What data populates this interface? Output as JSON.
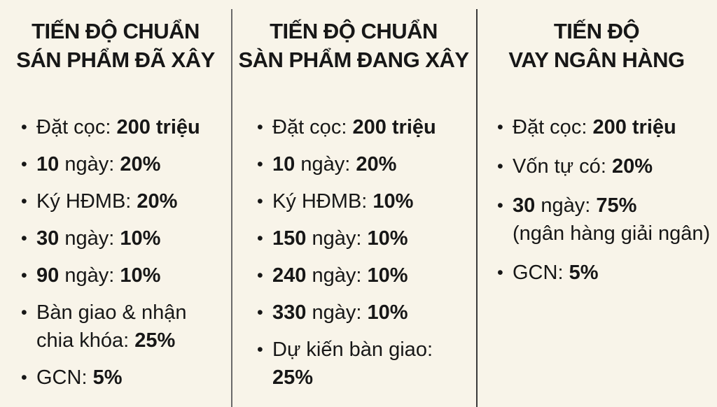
{
  "theme": {
    "background": "#f8f4e9",
    "text": "#171717",
    "divider1": "#6a6a6a",
    "divider2": "#3a3a3a"
  },
  "bullet": "•",
  "columns": [
    {
      "title": {
        "line1": "TIẾN ĐỘ CHUẨN",
        "line2": "SÁN PHẨM ĐÃ XÂY"
      },
      "items": [
        {
          "bold_prefix": "",
          "label": "Đặt cọc:",
          "value": "200 triệu"
        },
        {
          "bold_prefix": "10",
          "label": "ngày:",
          "value": "20%"
        },
        {
          "bold_prefix": "",
          "label": "Ký HĐMB:",
          "value": "20%"
        },
        {
          "bold_prefix": "30",
          "label": "ngày:",
          "value": "10%"
        },
        {
          "bold_prefix": "90",
          "label": "ngày:",
          "value": "10%"
        },
        {
          "bold_prefix": "",
          "label": "Bàn giao & nhận",
          "value": "",
          "line2_label": "chia khóa:",
          "line2_value": "25%"
        },
        {
          "bold_prefix": "",
          "label": "GCN:",
          "value": "5%"
        }
      ]
    },
    {
      "title": {
        "line1": "TIẾN ĐỘ CHUẨN",
        "line2": "SÀN PHẨM ĐANG XÂY"
      },
      "items": [
        {
          "bold_prefix": "",
          "label": "Đặt cọc:",
          "value": "200 triệu"
        },
        {
          "bold_prefix": "10",
          "label": "ngày:",
          "value": "20%"
        },
        {
          "bold_prefix": "",
          "label": "Ký HĐMB:",
          "value": "10%"
        },
        {
          "bold_prefix": "150",
          "label": "ngày:",
          "value": "10%"
        },
        {
          "bold_prefix": "240",
          "label": "ngày:",
          "value": "10%"
        },
        {
          "bold_prefix": "330",
          "label": "ngày:",
          "value": "10%"
        },
        {
          "bold_prefix": "",
          "label": "Dự kiến bàn giao:",
          "value": "",
          "line2_label": "",
          "line2_value": "25%"
        }
      ]
    },
    {
      "title": {
        "line1": "TIẾN ĐỘ",
        "line2": "VAY NGÂN HÀNG"
      },
      "items": [
        {
          "bold_prefix": "",
          "label": "Đặt cọc:",
          "value": "200 triệu"
        },
        {
          "bold_prefix": "",
          "label": "Vốn tự có:",
          "value": "20%"
        },
        {
          "bold_prefix": "30",
          "label": "ngày:",
          "value": "75%",
          "line2_label": "(ngân hàng giải ngân)",
          "line2_value": ""
        },
        {
          "bold_prefix": "",
          "label": "GCN:",
          "value": "5%"
        }
      ]
    }
  ]
}
